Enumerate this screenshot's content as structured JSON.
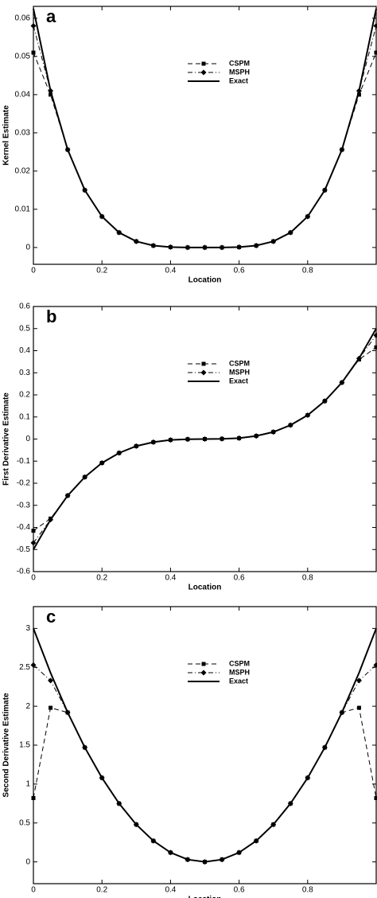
{
  "chart_data": [
    {
      "type": "line",
      "label": "a",
      "x_label": "Location",
      "y_label": "Kernel Estimate",
      "x": [
        0,
        0.05,
        0.1,
        0.15,
        0.2,
        0.25,
        0.3,
        0.35,
        0.4,
        0.45,
        0.5,
        0.55,
        0.6,
        0.65,
        0.7,
        0.75,
        0.8,
        0.85,
        0.9,
        0.95,
        1
      ],
      "series": [
        {
          "name": "CSPM",
          "color": "#000",
          "style": "dashed",
          "marker": "square",
          "values": [
            0.051,
            0.04,
            0.0256,
            0.015,
            0.0081,
            0.0039,
            0.0016,
            0.0005,
            0.0001,
            0,
            0,
            0,
            0.0001,
            0.0005,
            0.0016,
            0.0039,
            0.0081,
            0.015,
            0.0256,
            0.04,
            0.051
          ]
        },
        {
          "name": "MSPH",
          "color": "#000",
          "style": "dashdot",
          "marker": "diamond",
          "values": [
            0.058,
            0.041,
            0.0256,
            0.015,
            0.0081,
            0.0039,
            0.0016,
            0.0005,
            0.0001,
            0,
            0,
            0,
            0.0001,
            0.0005,
            0.0016,
            0.0039,
            0.0081,
            0.015,
            0.0256,
            0.041,
            0.058
          ]
        },
        {
          "name": "Exact",
          "color": "#000",
          "style": "solid",
          "marker": "none",
          "values": [
            0.0625,
            0.041,
            0.0256,
            0.015,
            0.0081,
            0.0039,
            0.0016,
            0.0005,
            0.0001,
            0,
            0,
            0,
            0.0001,
            0.0005,
            0.0016,
            0.0039,
            0.0081,
            0.015,
            0.0256,
            0.041,
            0.0625
          ]
        }
      ],
      "xlim": [
        0,
        1
      ],
      "xticks": [
        0,
        0.2,
        0.4,
        0.6,
        0.8
      ],
      "ylim": [
        -0.0044,
        0.0631
      ],
      "yticks": [
        0,
        0.01,
        0.02,
        0.03,
        0.04,
        0.05,
        0.06
      ]
    },
    {
      "type": "line",
      "label": "b",
      "x_label": "Location",
      "y_label": "First Derivative Estimate",
      "x": [
        0,
        0.05,
        0.1,
        0.15,
        0.2,
        0.25,
        0.3,
        0.35,
        0.4,
        0.45,
        0.5,
        0.55,
        0.6,
        0.65,
        0.7,
        0.75,
        0.8,
        0.85,
        0.9,
        0.95,
        1
      ],
      "series": [
        {
          "name": "CSPM",
          "color": "#000",
          "style": "dashed",
          "marker": "square",
          "values": [
            -0.415,
            -0.36,
            -0.256,
            -0.172,
            -0.108,
            -0.063,
            -0.032,
            -0.014,
            -0.004,
            -0.001,
            0,
            0.001,
            0.004,
            0.014,
            0.032,
            0.063,
            0.108,
            0.172,
            0.256,
            0.36,
            0.415
          ]
        },
        {
          "name": "MSPH",
          "color": "#000",
          "style": "dashdot",
          "marker": "diamond",
          "values": [
            -0.47,
            -0.365,
            -0.256,
            -0.172,
            -0.108,
            -0.063,
            -0.032,
            -0.014,
            -0.004,
            -0.001,
            0,
            0.001,
            0.004,
            0.014,
            0.032,
            0.063,
            0.108,
            0.172,
            0.256,
            0.365,
            0.47
          ]
        },
        {
          "name": "Exact",
          "color": "#000",
          "style": "solid",
          "marker": "none",
          "values": [
            -0.5,
            -0.365,
            -0.256,
            -0.172,
            -0.108,
            -0.063,
            -0.032,
            -0.014,
            -0.004,
            -0.001,
            0,
            0.001,
            0.004,
            0.014,
            0.032,
            0.063,
            0.108,
            0.172,
            0.256,
            0.365,
            0.5
          ]
        }
      ],
      "xlim": [
        0,
        1
      ],
      "xticks": [
        0,
        0.2,
        0.4,
        0.6,
        0.8
      ],
      "ylim": [
        -0.6,
        0.6
      ],
      "yticks": [
        -0.6,
        -0.5,
        -0.4,
        -0.3,
        -0.2,
        -0.1,
        0,
        0.1,
        0.2,
        0.3,
        0.4,
        0.5,
        0.6
      ]
    },
    {
      "type": "line",
      "label": "c",
      "x_label": "Location",
      "y_label": "Second Derivative Estimate",
      "x": [
        0,
        0.05,
        0.1,
        0.15,
        0.2,
        0.25,
        0.3,
        0.35,
        0.4,
        0.45,
        0.5,
        0.55,
        0.6,
        0.65,
        0.7,
        0.75,
        0.8,
        0.85,
        0.9,
        0.95,
        1
      ],
      "series": [
        {
          "name": "CSPM",
          "color": "#000",
          "style": "dashed",
          "marker": "square",
          "values": [
            0.82,
            1.98,
            1.92,
            1.47,
            1.08,
            0.75,
            0.48,
            0.27,
            0.12,
            0.03,
            0,
            0.03,
            0.12,
            0.27,
            0.48,
            0.75,
            1.08,
            1.47,
            1.92,
            1.98,
            0.82
          ]
        },
        {
          "name": "MSPH",
          "color": "#000",
          "style": "dashdot",
          "marker": "diamond",
          "values": [
            2.53,
            2.33,
            1.92,
            1.47,
            1.08,
            0.75,
            0.48,
            0.27,
            0.12,
            0.03,
            0,
            0.03,
            0.12,
            0.27,
            0.48,
            0.75,
            1.08,
            1.47,
            1.92,
            2.33,
            2.53
          ]
        },
        {
          "name": "Exact",
          "color": "#000",
          "style": "solid",
          "marker": "none",
          "values": [
            3,
            2.43,
            1.92,
            1.47,
            1.08,
            0.75,
            0.48,
            0.27,
            0.12,
            0.03,
            0,
            0.03,
            0.12,
            0.27,
            0.48,
            0.75,
            1.08,
            1.47,
            1.92,
            2.43,
            3
          ]
        }
      ],
      "xlim": [
        0,
        1
      ],
      "xticks": [
        0,
        0.2,
        0.4,
        0.6,
        0.8
      ],
      "ylim": [
        -0.28,
        3.28
      ],
      "yticks": [
        0,
        0.5,
        1,
        1.5,
        2,
        2.5,
        3
      ]
    }
  ]
}
